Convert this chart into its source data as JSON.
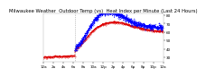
{
  "title": "Milwaukee Weather  Outdoor Temp (vs)  Heat Index per Minute (Last 24 Hours)",
  "background_color": "#ffffff",
  "plot_bg_color": "#ffffff",
  "blue_color": "#0000ff",
  "red_color": "#dd0000",
  "ylim": [
    25,
    82
  ],
  "xlim": [
    0,
    1440
  ],
  "vline_x": 380,
  "title_fontsize": 3.8,
  "tick_fontsize": 3.0,
  "legend_fontsize": 3.0,
  "linewidth": 0.6,
  "n_points": 1440
}
